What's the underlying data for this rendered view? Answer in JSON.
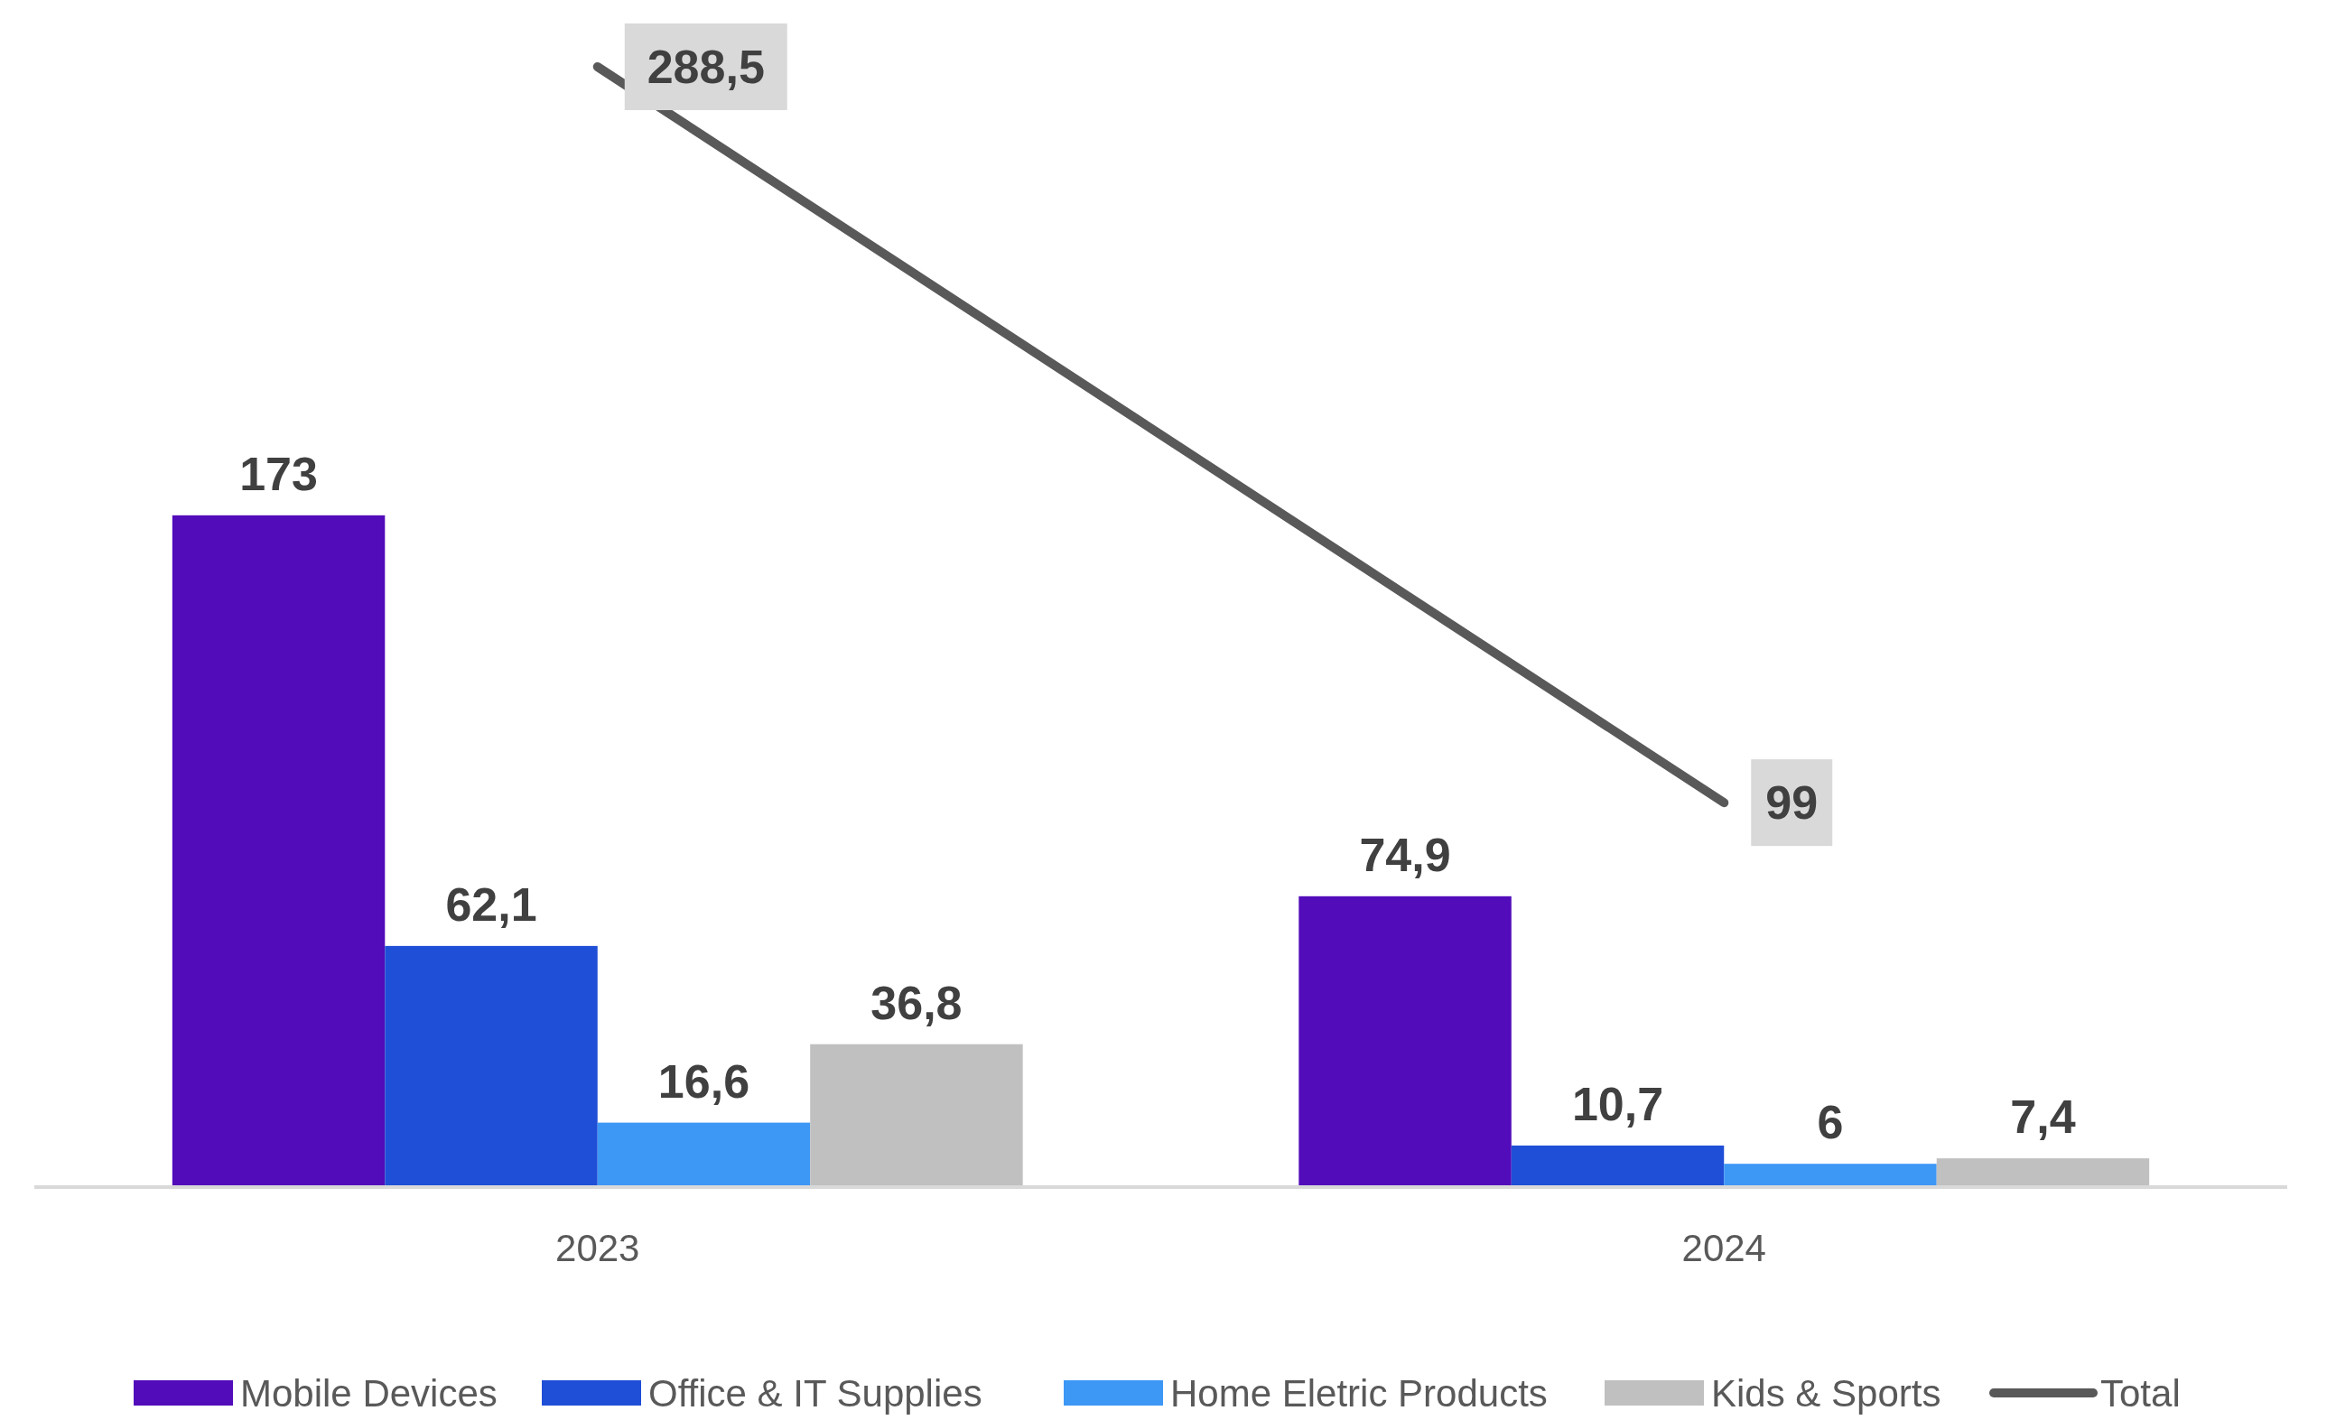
{
  "chart_data": {
    "type": "bar",
    "categories": [
      "2023",
      "2024"
    ],
    "series": [
      {
        "name": "Mobile Devices",
        "color": "#520cba",
        "values": [
          173,
          74.9
        ],
        "value_labels": [
          "173",
          "74,9"
        ]
      },
      {
        "name": "Office & IT Supplies",
        "color": "#1f4fd6",
        "values": [
          62.1,
          10.7
        ],
        "value_labels": [
          "62,1",
          "10,7"
        ]
      },
      {
        "name": "Home Eletric Products",
        "color": "#3d97f5",
        "values": [
          16.6,
          6
        ],
        "value_labels": [
          "16,6",
          "6"
        ]
      },
      {
        "name": "Kids & Sports",
        "color": "#c0c0c0",
        "values": [
          36.8,
          7.4
        ],
        "value_labels": [
          "36,8",
          "7,4"
        ]
      },
      {
        "name": "Total",
        "type": "line",
        "color": "#595959",
        "values": [
          288.5,
          99
        ],
        "value_labels": [
          "288,5",
          "99"
        ]
      }
    ],
    "grid": false,
    "legend": "bottom"
  }
}
